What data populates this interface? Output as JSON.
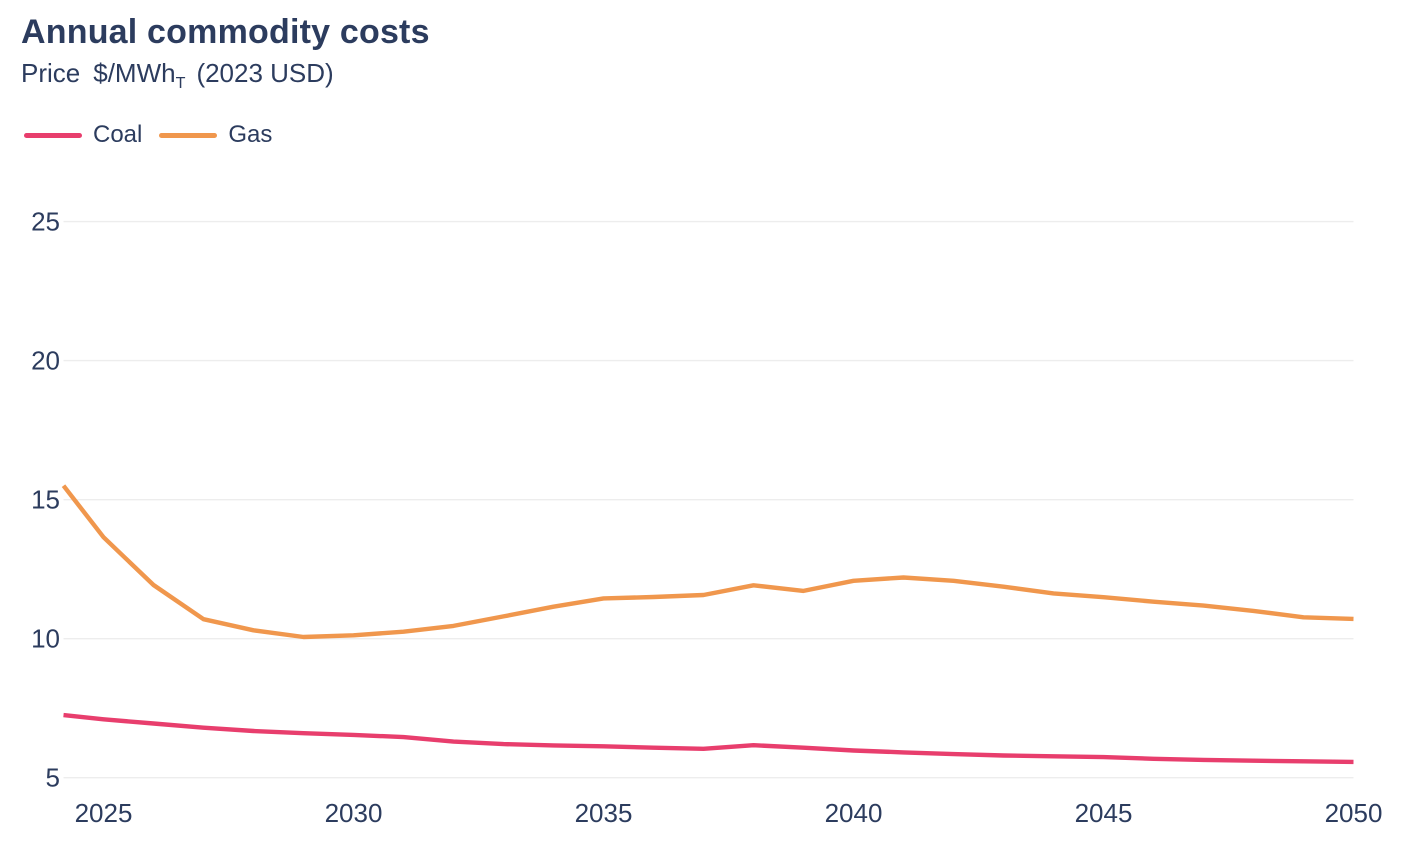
{
  "header": {
    "title": "Annual commodity costs",
    "subtitle": {
      "prefix": "Price",
      "unit": "$/MWh",
      "subscript": "T",
      "suffix": "(2023 USD)"
    }
  },
  "colors": {
    "text": "#2c3c5e",
    "grid": "#ededed",
    "background": "#ffffff"
  },
  "chart_data": {
    "type": "line",
    "title": "Annual commodity costs",
    "xlabel": "",
    "ylabel": "Price $/MWh_T (2023 USD)",
    "x": [
      2024.2,
      2025,
      2026,
      2027,
      2028,
      2029,
      2030,
      2031,
      2032,
      2033,
      2034,
      2035,
      2036,
      2037,
      2038,
      2039,
      2040,
      2041,
      2042,
      2043,
      2044,
      2045,
      2046,
      2047,
      2048,
      2049,
      2050
    ],
    "series": [
      {
        "name": "Coal",
        "color": "#e83e6d",
        "values": [
          7.25,
          7.1,
          6.95,
          6.8,
          6.68,
          6.6,
          6.54,
          6.46,
          6.3,
          6.21,
          6.16,
          6.13,
          6.08,
          6.04,
          6.17,
          6.08,
          5.98,
          5.91,
          5.85,
          5.8,
          5.77,
          5.74,
          5.68,
          5.64,
          5.61,
          5.59,
          5.57
        ]
      },
      {
        "name": "Gas",
        "color": "#f0974d",
        "values": [
          15.5,
          13.65,
          11.93,
          10.7,
          10.3,
          10.06,
          10.12,
          10.25,
          10.46,
          10.8,
          11.15,
          11.45,
          11.5,
          11.57,
          11.92,
          11.72,
          12.08,
          12.2,
          12.08,
          11.87,
          11.63,
          11.49,
          11.33,
          11.19,
          11.0,
          10.77,
          10.71
        ]
      }
    ],
    "xlim": [
      2024.2,
      2050
    ],
    "ylim": [
      5,
      25
    ],
    "yticks": [
      5,
      10,
      15,
      20,
      25
    ],
    "xticks": [
      2025,
      2030,
      2035,
      2040,
      2045,
      2050
    ],
    "grid": "horizontal-only",
    "legend_position": "top-left"
  }
}
